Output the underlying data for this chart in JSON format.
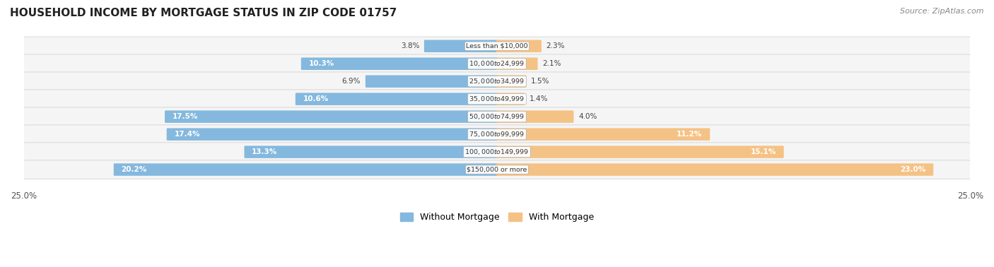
{
  "title": "HOUSEHOLD INCOME BY MORTGAGE STATUS IN ZIP CODE 01757",
  "source": "Source: ZipAtlas.com",
  "categories": [
    "Less than $10,000",
    "$10,000 to $24,999",
    "$25,000 to $34,999",
    "$35,000 to $49,999",
    "$50,000 to $74,999",
    "$75,000 to $99,999",
    "$100,000 to $149,999",
    "$150,000 or more"
  ],
  "without_mortgage": [
    3.8,
    10.3,
    6.9,
    10.6,
    17.5,
    17.4,
    13.3,
    20.2
  ],
  "with_mortgage": [
    2.3,
    2.1,
    1.5,
    1.4,
    4.0,
    11.2,
    15.1,
    23.0
  ],
  "color_without": "#84b8de",
  "color_with": "#f5c285",
  "axis_max": 25.0,
  "legend_without": "Without Mortgage",
  "legend_with": "With Mortgage",
  "title_fontsize": 11,
  "source_fontsize": 8,
  "row_bg": "#f0f0f0",
  "row_border": "#d0d0d0"
}
